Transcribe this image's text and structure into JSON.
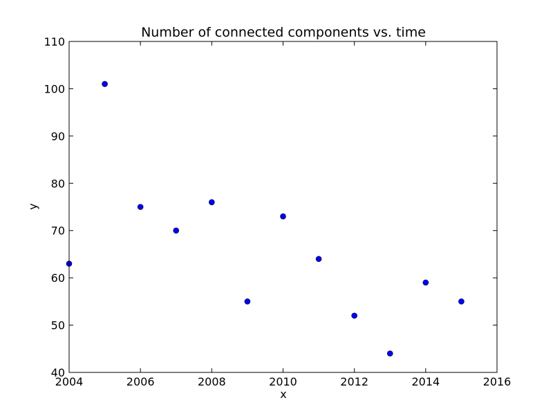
{
  "chart_data": {
    "type": "scatter",
    "title": "Number of connected components vs. time",
    "xlabel": "x",
    "ylabel": "y",
    "xlim": [
      2004,
      2016
    ],
    "ylim": [
      40,
      110
    ],
    "xticks": [
      2004,
      2006,
      2008,
      2010,
      2012,
      2014,
      2016
    ],
    "yticks": [
      40,
      50,
      60,
      70,
      80,
      90,
      100,
      110
    ],
    "grid": false,
    "legend": "none",
    "marker_color": "#0000ff",
    "series": [
      {
        "x": [
          2004,
          2005,
          2006,
          2007,
          2008,
          2009,
          2010,
          2011,
          2012,
          2013,
          2014,
          2015
        ],
        "y": [
          63,
          101,
          75,
          70,
          76,
          55,
          73,
          64,
          52,
          44,
          59,
          55
        ]
      }
    ]
  }
}
